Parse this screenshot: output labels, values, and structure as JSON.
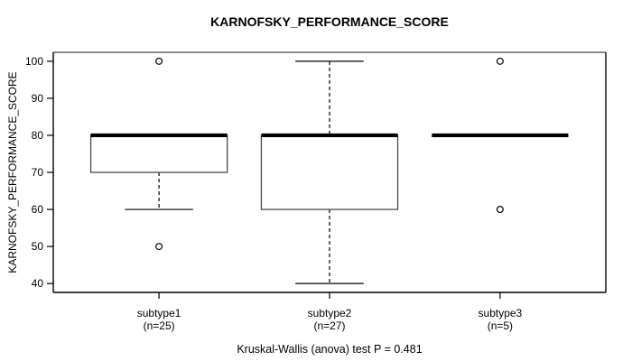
{
  "chart_data": {
    "type": "boxplot",
    "title": "KARNOFSKY_PERFORMANCE_SCORE",
    "ylabel": "KARNOFSKY_PERFORMANCE_SCORE",
    "xlabel": "",
    "footnote": "Kruskal-Wallis (anova) test P = 0.481",
    "ylim": [
      40,
      100
    ],
    "yticks": [
      40,
      50,
      60,
      70,
      80,
      90,
      100
    ],
    "grid": false,
    "legend": null,
    "groups": [
      {
        "label": "subtype1",
        "sublabel": "(n=25)",
        "n": 25,
        "q1": 70,
        "median": 80,
        "q3": 80,
        "whisker_low": 60,
        "whisker_high": 80,
        "outliers": [
          100,
          50
        ]
      },
      {
        "label": "subtype2",
        "sublabel": "(n=27)",
        "n": 27,
        "q1": 60,
        "median": 80,
        "q3": 80,
        "whisker_low": 40,
        "whisker_high": 100,
        "outliers": []
      },
      {
        "label": "subtype3",
        "sublabel": "(n=5)",
        "n": 5,
        "q1": 80,
        "median": 80,
        "q3": 80,
        "whisker_low": 80,
        "whisker_high": 80,
        "outliers": [
          100,
          60
        ]
      }
    ],
    "colors": {
      "line": "#000000",
      "box_border": "#4a4a4a",
      "frame": "#000000",
      "frame_top": "#888888",
      "background": "#ffffff",
      "outlier_fill": "#ffffff"
    }
  }
}
